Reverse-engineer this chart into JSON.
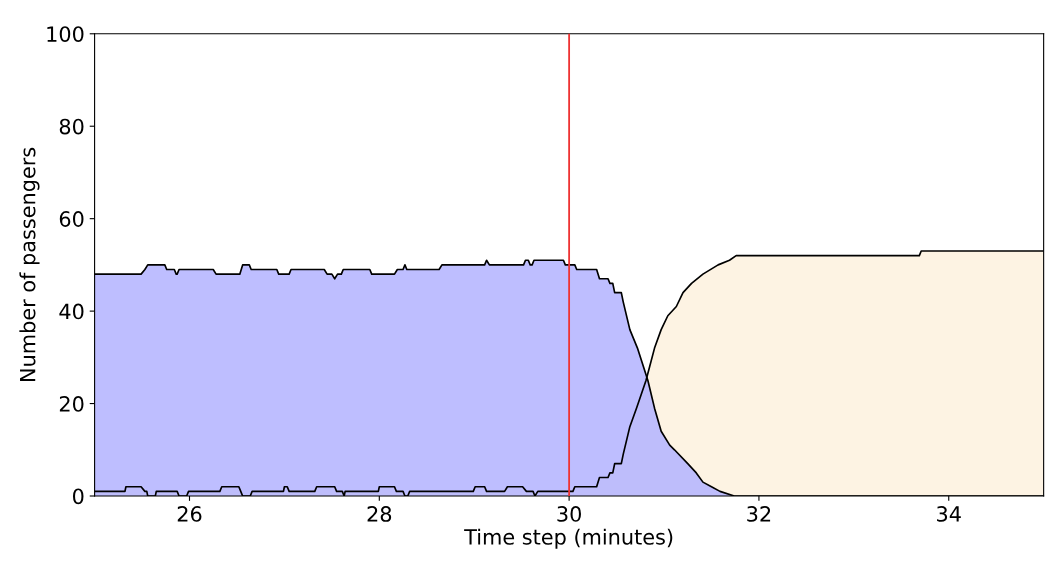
{
  "chart_data": {
    "type": "area",
    "xlabel": "Time step (minutes)",
    "ylabel": "Number of passengers",
    "xlim": [
      25,
      35
    ],
    "xticks": [
      26,
      28,
      30,
      32,
      34
    ],
    "ylim": [
      0,
      100
    ],
    "yticks": [
      0,
      20,
      40,
      60,
      80,
      100
    ],
    "grid": false,
    "ref_lines": [
      {
        "axis": "x",
        "value": 30,
        "color": "#ee3333"
      }
    ],
    "series": [
      {
        "color": "#fdf3e3",
        "x": [
          25,
          25.32,
          25.33,
          25.49,
          25.53,
          25.55,
          25.56,
          25.64,
          25.65,
          25.87,
          25.89,
          25.97,
          25.99,
          26.32,
          26.34,
          26.52,
          26.54,
          26.56,
          26.64,
          26.66,
          26.99,
          27.0,
          27.03,
          27.05,
          27.32,
          27.34,
          27.53,
          27.55,
          27.61,
          27.63,
          27.64,
          27.99,
          28.0,
          28.16,
          28.18,
          28.25,
          28.27,
          28.3,
          28.32,
          28.64,
          28.99,
          29.01,
          29.11,
          29.13,
          29.32,
          29.35,
          29.51,
          29.55,
          29.62,
          29.64,
          29.67,
          30.04,
          30.06,
          30.29,
          30.32,
          30.41,
          30.43,
          30.46,
          30.48,
          30.55,
          30.57,
          30.64,
          30.71,
          30.81,
          30.9,
          30.97,
          31.04,
          31.13,
          31.2,
          31.29,
          31.41,
          31.57,
          31.69,
          31.76,
          33.69,
          33.71,
          35
        ],
        "values": [
          1,
          1,
          2,
          2,
          1,
          1,
          0,
          0,
          1,
          1,
          0,
          0,
          1,
          1,
          2,
          2,
          1,
          0,
          0,
          1,
          1,
          2,
          2,
          1,
          1,
          2,
          2,
          1,
          1,
          0,
          1,
          1,
          2,
          2,
          1,
          1,
          0,
          0,
          1,
          1,
          1,
          2,
          2,
          1,
          1,
          2,
          2,
          1,
          1,
          0,
          1,
          1,
          2,
          2,
          4,
          4,
          5,
          5,
          7,
          7,
          9,
          15,
          19,
          25,
          32,
          36,
          39,
          41,
          44,
          46,
          48,
          50,
          51,
          52,
          52,
          53,
          53
        ]
      },
      {
        "color": "#b3b3ff",
        "x": [
          25,
          25.49,
          25.53,
          25.56,
          25.74,
          25.76,
          25.84,
          25.86,
          25.87,
          25.89,
          26.25,
          26.28,
          26.53,
          26.56,
          26.63,
          26.65,
          26.92,
          26.94,
          27.05,
          27.07,
          27.42,
          27.45,
          27.5,
          27.53,
          27.56,
          27.6,
          27.62,
          27.9,
          27.92,
          28.16,
          28.19,
          28.25,
          28.27,
          28.29,
          28.63,
          28.66,
          29.11,
          29.13,
          29.16,
          29.52,
          29.54,
          29.57,
          29.59,
          29.61,
          29.63,
          29.94,
          29.96,
          30.06,
          30.08,
          30.29,
          30.32,
          30.41,
          30.43,
          30.46,
          30.48,
          30.55,
          30.57,
          30.64,
          30.72,
          30.83,
          30.9,
          30.97,
          31.06,
          31.11,
          31.25,
          31.34,
          31.41,
          31.5,
          31.59,
          31.74,
          35
        ],
        "values": [
          48,
          48,
          49,
          50,
          50,
          49,
          49,
          48,
          48,
          49,
          49,
          48,
          48,
          50,
          50,
          49,
          49,
          48,
          48,
          49,
          49,
          48,
          48,
          47,
          48,
          48,
          49,
          49,
          48,
          48,
          49,
          49,
          50,
          49,
          49,
          50,
          50,
          51,
          50,
          50,
          51,
          51,
          50,
          50,
          51,
          51,
          50,
          50,
          49,
          49,
          47,
          47,
          46,
          46,
          44,
          44,
          42,
          36,
          32,
          25,
          19,
          14,
          11,
          10,
          7,
          5,
          3,
          2,
          1,
          0,
          0
        ]
      }
    ]
  }
}
